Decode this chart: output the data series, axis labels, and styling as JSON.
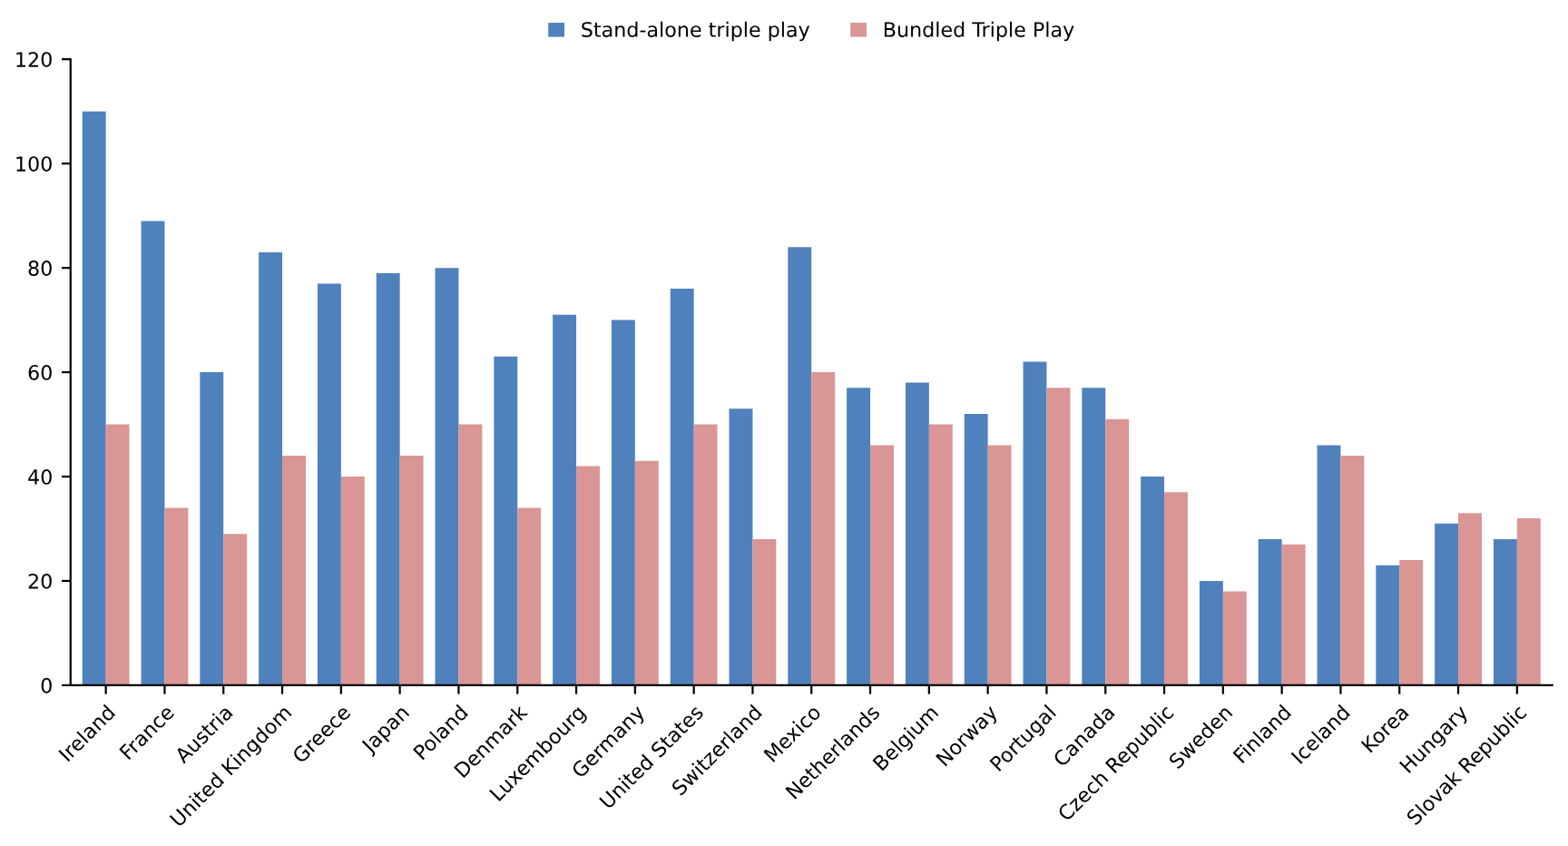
{
  "chart_data": {
    "type": "bar",
    "categories": [
      "Ireland",
      "France",
      "Austria",
      "United Kingdom",
      "Greece",
      "Japan",
      "Poland",
      "Denmark",
      "Luxembourg",
      "Germany",
      "United States",
      "Switzerland",
      "Mexico",
      "Netherlands",
      "Belgium",
      "Norway",
      "Portugal",
      "Canada",
      "Czech Republic",
      "Sweden",
      "Finland",
      "Iceland",
      "Korea",
      "Hungary",
      "Slovak Republic"
    ],
    "series": [
      {
        "name": "Stand-alone triple play",
        "color": "#4f81bd",
        "values": [
          110,
          89,
          60,
          83,
          77,
          79,
          80,
          63,
          71,
          70,
          76,
          53,
          84,
          57,
          58,
          52,
          62,
          57,
          40,
          20,
          28,
          46,
          23,
          31,
          28
        ]
      },
      {
        "name": "Bundled Triple Play",
        "color": "#d99694",
        "values": [
          50,
          34,
          29,
          44,
          40,
          44,
          50,
          34,
          42,
          43,
          50,
          28,
          60,
          46,
          50,
          46,
          57,
          51,
          37,
          18,
          27,
          44,
          24,
          33,
          32
        ]
      }
    ],
    "ylim": [
      0,
      120
    ],
    "yticks": [
      0,
      20,
      40,
      60,
      80,
      100,
      120
    ],
    "grid": false,
    "legend": "top"
  }
}
